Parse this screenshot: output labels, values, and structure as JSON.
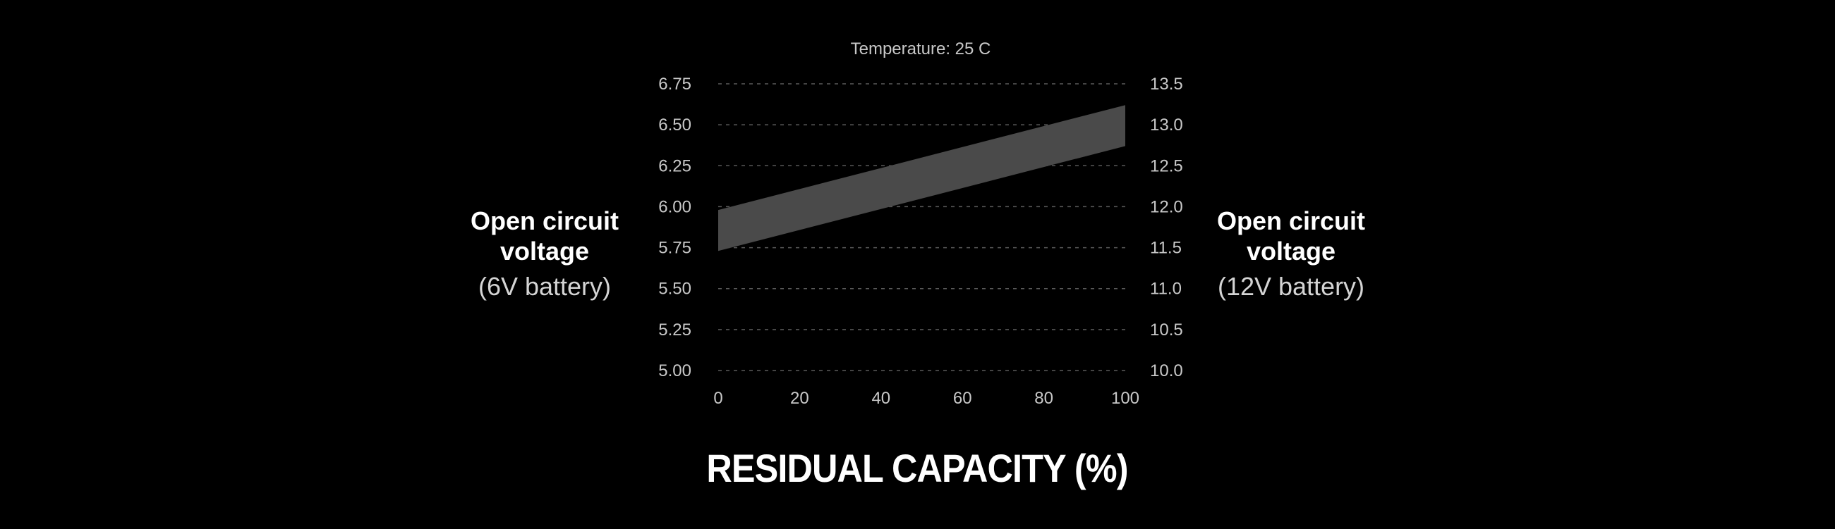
{
  "chart_data": {
    "type": "area",
    "title": "Temperature: 25 C",
    "xlabel": "RESIDUAL CAPACITY (%)",
    "x_ticks": [
      "0",
      "20",
      "40",
      "60",
      "80",
      "100"
    ],
    "xlim": [
      0,
      100
    ],
    "y_left": {
      "label": "Open circuit voltage",
      "sublabel": "(6V battery)",
      "ticks": [
        "6.75",
        "6.50",
        "6.25",
        "6.00",
        "5.75",
        "5.50",
        "5.25",
        "5.00"
      ],
      "ylim": [
        5.0,
        6.75
      ]
    },
    "y_right": {
      "label": "Open circuit voltage",
      "sublabel": "(12V battery)",
      "ticks": [
        "13.5",
        "13.0",
        "12.5",
        "12.0",
        "11.5",
        "11.0",
        "10.5",
        "10.0"
      ],
      "ylim": [
        10.0,
        13.5
      ]
    },
    "grid": true,
    "band": {
      "name": "open circuit voltage range (6V)",
      "x": [
        0,
        100
      ],
      "lower": [
        5.73,
        6.37
      ],
      "upper": [
        5.98,
        6.62
      ]
    },
    "colors": {
      "background": "#000000",
      "band": "#4a4a4a",
      "grid": "#5a5a5a",
      "tick_text": "#c8c8c8",
      "label_text": "#ffffff"
    }
  }
}
